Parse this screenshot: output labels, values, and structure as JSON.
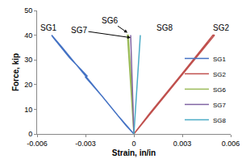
{
  "chart_data": {
    "type": "line",
    "x_label": "Strain, in/in",
    "y_label": "Force, kip",
    "xlim": [
      -0.006,
      0.006
    ],
    "xticks": [
      -0.006,
      -0.003,
      0,
      0.003,
      0.006
    ],
    "ylim": [
      0,
      50
    ],
    "yticks": [
      0,
      10,
      20,
      30,
      40,
      50
    ],
    "grid": false,
    "legend": "lower right",
    "series": [
      {
        "name": "SG1",
        "color": "#4472c4",
        "x": [
          0,
          -0.001,
          -0.002,
          -0.003,
          -0.0029,
          -0.004,
          -0.005,
          -0.0051,
          -0.0045,
          -0.0035,
          -0.0025,
          -0.0015,
          -0.0005,
          0
        ],
        "values": [
          0,
          7.5,
          15.5,
          23,
          23.5,
          31,
          39,
          40,
          35.5,
          27.5,
          19.5,
          11.5,
          3.5,
          0
        ]
      },
      {
        "name": "SG2",
        "color": "#c0504d",
        "x": [
          0,
          0.001,
          0.002,
          0.003,
          0.004,
          0.005,
          0.0049,
          0.004,
          0.003,
          0.002,
          0.001,
          0
        ],
        "values": [
          0,
          8,
          16,
          24,
          32,
          40,
          40,
          32.5,
          24.5,
          16.5,
          8.5,
          0
        ]
      },
      {
        "name": "SG6",
        "color": "#9bbb59",
        "x": [
          0,
          -0.0002,
          -0.0004,
          -0.00035,
          -0.0001,
          0
        ],
        "values": [
          0,
          20,
          40,
          40,
          15,
          0
        ]
      },
      {
        "name": "SG7",
        "color": "#8064a2",
        "x": [
          0,
          -0.0001,
          -0.0002,
          -0.00018,
          0
        ],
        "values": [
          0,
          20,
          40,
          40,
          0
        ]
      },
      {
        "name": "SG8",
        "color": "#4bacc6",
        "x": [
          0,
          0.0002,
          0.0004,
          0.00038,
          0.0001,
          0
        ],
        "values": [
          0,
          20,
          40,
          40,
          12,
          0
        ]
      }
    ],
    "annotations": [
      {
        "text": "SG1",
        "x": -0.0053,
        "y": 43
      },
      {
        "text": "SG2",
        "x": 0.0054,
        "y": 43
      },
      {
        "text": "SG6",
        "x": -0.0015,
        "y": 46,
        "arrow_x": -0.0004,
        "arrow_y": 41
      },
      {
        "text": "SG7",
        "x": -0.0034,
        "y": 42,
        "arrow_x": -0.0002,
        "arrow_y": 39
      },
      {
        "text": "SG8",
        "x": 0.0019,
        "y": 43
      }
    ]
  }
}
